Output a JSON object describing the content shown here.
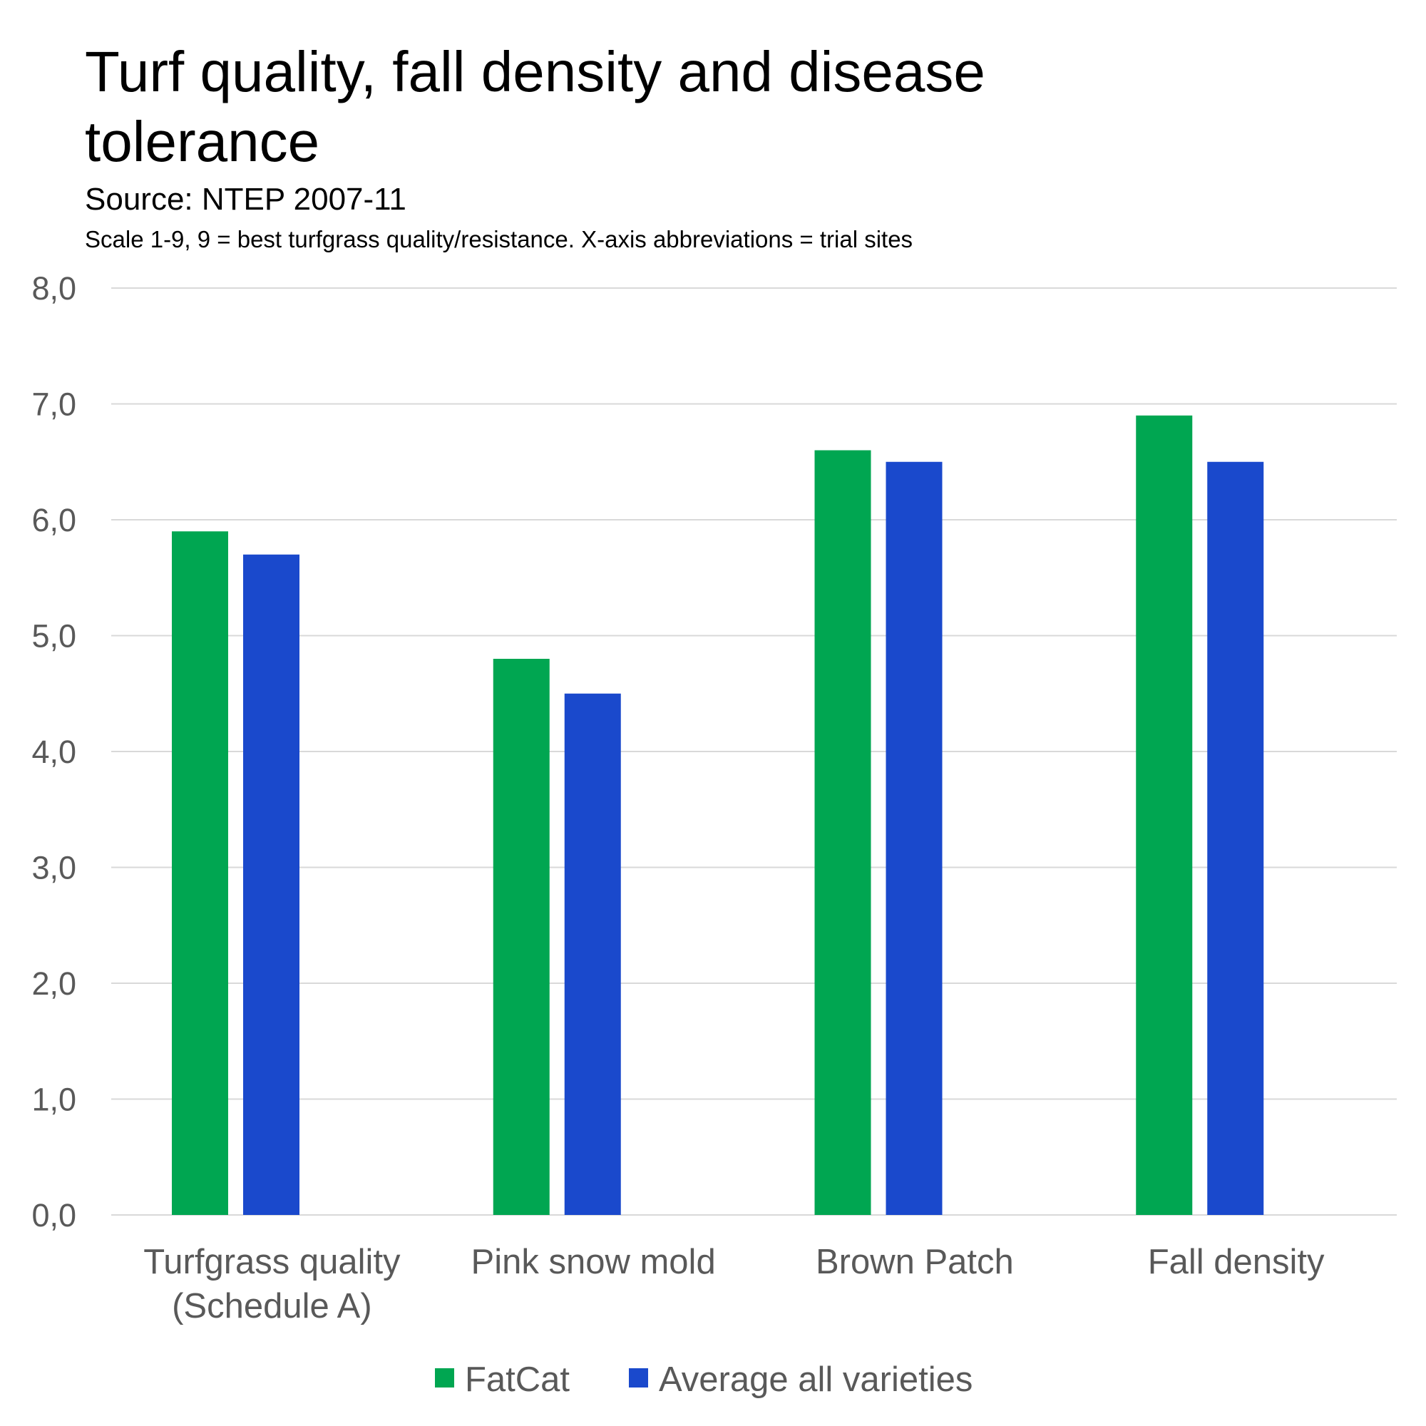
{
  "chart_data": {
    "type": "bar",
    "title_lines": [
      "Turf quality, fall density and disease",
      "tolerance"
    ],
    "subtitle": "Source: NTEP 2007-11",
    "note": "Scale 1-9, 9 = best turfgrass quality/resistance. X-axis abbreviations = trial sites",
    "categories": [
      [
        "Turfgrass quality",
        "(Schedule A)"
      ],
      [
        "Pink snow mold"
      ],
      [
        "Brown Patch"
      ],
      [
        "Fall density"
      ]
    ],
    "series": [
      {
        "name": "FatCat",
        "color": "#00A651",
        "values": [
          5.9,
          4.8,
          6.6,
          6.9
        ]
      },
      {
        "name": "Average all varieties",
        "color": "#1A49CC",
        "values": [
          5.7,
          4.5,
          6.5,
          6.5
        ]
      }
    ],
    "ylim": [
      0,
      8
    ],
    "yticks": [
      "0,0",
      "1,0",
      "2,0",
      "3,0",
      "4,0",
      "5,0",
      "6,0",
      "7,0",
      "8,0"
    ],
    "grid": true,
    "legend": "bottom-center",
    "xlabel": "",
    "ylabel": ""
  }
}
